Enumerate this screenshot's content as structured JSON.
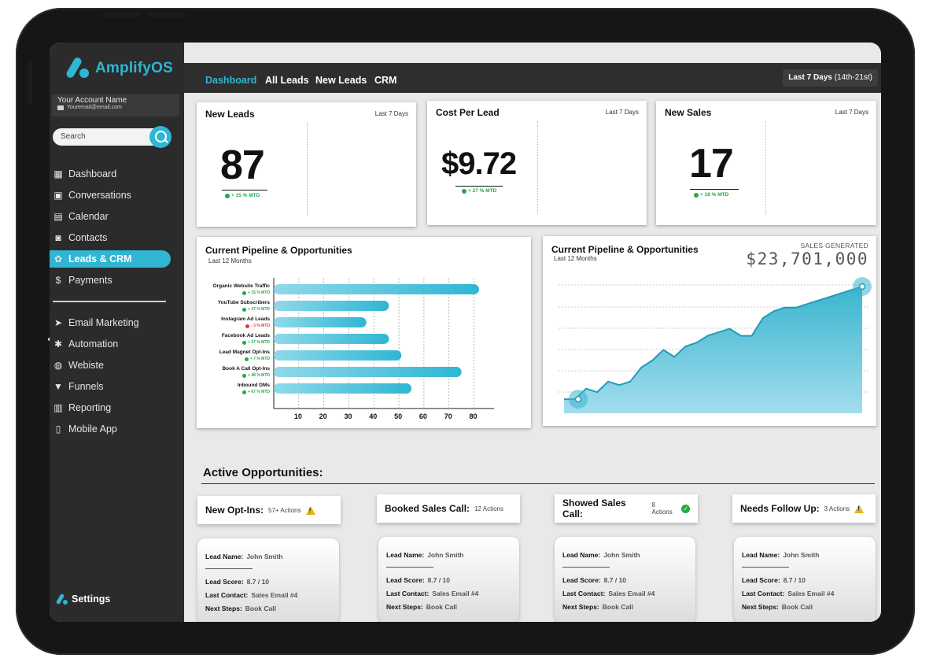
{
  "app": {
    "name": "AmplifyOS"
  },
  "account": {
    "name": "Your Account Name",
    "email": "Youremail@email.com"
  },
  "search": {
    "placeholder": "Search"
  },
  "sidebar": {
    "items": [
      {
        "label": "Dashboard",
        "icon": "dashboard-icon"
      },
      {
        "label": "Conversations",
        "icon": "chat-icon"
      },
      {
        "label": "Calendar",
        "icon": "calendar-icon"
      },
      {
        "label": "Contacts",
        "icon": "contacts-icon"
      },
      {
        "label": "Leads & CRM",
        "icon": "crm-icon",
        "active": true
      },
      {
        "label": "Payments",
        "icon": "dollar-icon"
      }
    ],
    "items2": [
      {
        "label": "Email Marketing",
        "icon": "paper-plane-icon"
      },
      {
        "label": "Automation",
        "icon": "automation-icon"
      },
      {
        "label": "Webiste",
        "icon": "globe-icon"
      },
      {
        "label": "Funnels",
        "icon": "funnel-icon"
      },
      {
        "label": "Reporting",
        "icon": "report-icon"
      },
      {
        "label": "Mobile App",
        "icon": "phone-icon"
      }
    ],
    "settings": "Settings"
  },
  "tabs": [
    "Dashboard",
    "All Leads",
    "New Leads",
    "CRM"
  ],
  "date_range": {
    "bold": "Last 7 Days",
    "rest": " (14th-21st)"
  },
  "kpis": [
    {
      "title": "New Leads",
      "range": "Last 7 Days",
      "value": "87",
      "delta": "+ 15 % MTD"
    },
    {
      "title": "Cost Per Lead",
      "range": "Last 7 Days",
      "value": "$9.72",
      "delta": "+ 27 % MTD"
    },
    {
      "title": "New Sales",
      "range": "Last 7 Days",
      "value": "17",
      "delta": "+ 18 % MTD"
    }
  ],
  "pipeline_bar": {
    "title": "Current Pipeline & Opportunities",
    "subtitle": "Last 12 Months"
  },
  "pipeline_area": {
    "title": "Current Pipeline & Opportunities",
    "subtitle": "Last 12 Months",
    "sales_label": "SALES GENERATED",
    "sales_value": "$23,701,000"
  },
  "chart_data": [
    {
      "type": "bar",
      "orientation": "horizontal",
      "title": "Current Pipeline & Opportunities",
      "subtitle": "Last 12 Months",
      "categories": [
        "Organic Website Traffic",
        "YouTube Subscribers",
        "Instagram Ad Leads",
        "Facebook Ad Leads",
        "Lead Magnet Opt-Ins",
        "Book A Call Opt-Ins",
        "Inbound DMs"
      ],
      "values": [
        82,
        46,
        37,
        46,
        51,
        75,
        55
      ],
      "deltas": [
        "+ 15 % MTD",
        "+ 27 % MTD",
        "- 3 % MTD",
        "+ 37 % MTD",
        "+ 7 % MTD",
        "+ 48 % MTD",
        "+ 67 % MTD"
      ],
      "delta_colors": [
        "#25a84a",
        "#25a84a",
        "#e03a3a",
        "#25a84a",
        "#25a84a",
        "#25a84a",
        "#25a84a"
      ],
      "xticks": [
        10,
        20,
        30,
        40,
        50,
        60,
        70,
        80
      ],
      "xlim": [
        0,
        88
      ],
      "grid": "vertical dotted",
      "color": "#2fb6d3"
    },
    {
      "type": "area",
      "title": "Current Pipeline & Opportunities",
      "subtitle": "Last 12 Months",
      "annotation": "SALES GENERATED $23,701,000",
      "values": [
        2,
        2,
        3.5,
        3,
        4.5,
        4,
        4.5,
        6.5,
        7.5,
        9,
        8,
        9.5,
        10,
        11,
        11.5,
        12,
        11,
        11,
        13.5,
        14.5,
        15,
        15,
        15.5,
        16,
        16.5,
        17,
        17.5,
        18
      ],
      "ylim": [
        0,
        19
      ],
      "grid": "horizontal dotted",
      "color": "#2fb6d3"
    }
  ],
  "active": {
    "title": "Active Opportunities:",
    "stages": [
      {
        "stage": "New Opt-Ins:",
        "actions": "57+ Actions",
        "icon": "warning-icon"
      },
      {
        "stage": "Booked Sales Call:",
        "actions": "12 Actions",
        "icon": ""
      },
      {
        "stage": "Showed Sales Call:",
        "actions": "8 Actions",
        "icon": "check-icon"
      },
      {
        "stage": "Needs Follow Up:",
        "actions": "3 Actions",
        "icon": "warning-icon"
      }
    ],
    "lead_labels": {
      "name": "Lead Name:",
      "score": "Lead Score:",
      "contact": "Last Contact:",
      "next": "Next Steps:"
    },
    "lead": {
      "name": "John Smith",
      "score": "8.7 / 10",
      "contact": "Sales Email #4",
      "next": "Book Call"
    }
  }
}
